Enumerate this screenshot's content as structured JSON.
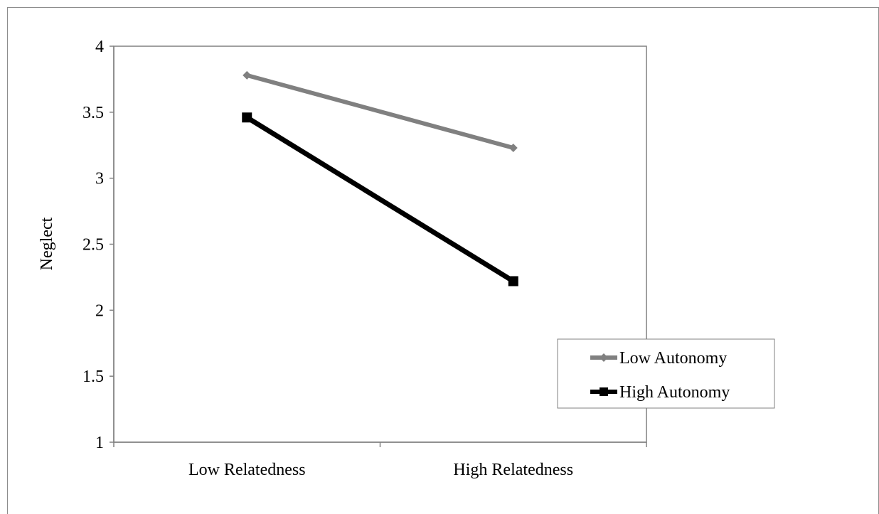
{
  "chart_data": {
    "type": "line",
    "title": "",
    "xlabel": "",
    "ylabel": "Neglect",
    "categories": [
      "Low Relatedness",
      "High Relatedness"
    ],
    "ylim": [
      1,
      4
    ],
    "yticks": [
      "1",
      "1.5",
      "2",
      "2.5",
      "3",
      "3.5",
      "4"
    ],
    "grid": false,
    "legend_position": "right",
    "series": [
      {
        "name": "Low Autonomy",
        "values": [
          3.78,
          3.23
        ],
        "color": "#808080",
        "marker": "diamond"
      },
      {
        "name": "High Autonomy",
        "values": [
          3.46,
          2.22
        ],
        "color": "#000000",
        "marker": "square"
      }
    ]
  }
}
